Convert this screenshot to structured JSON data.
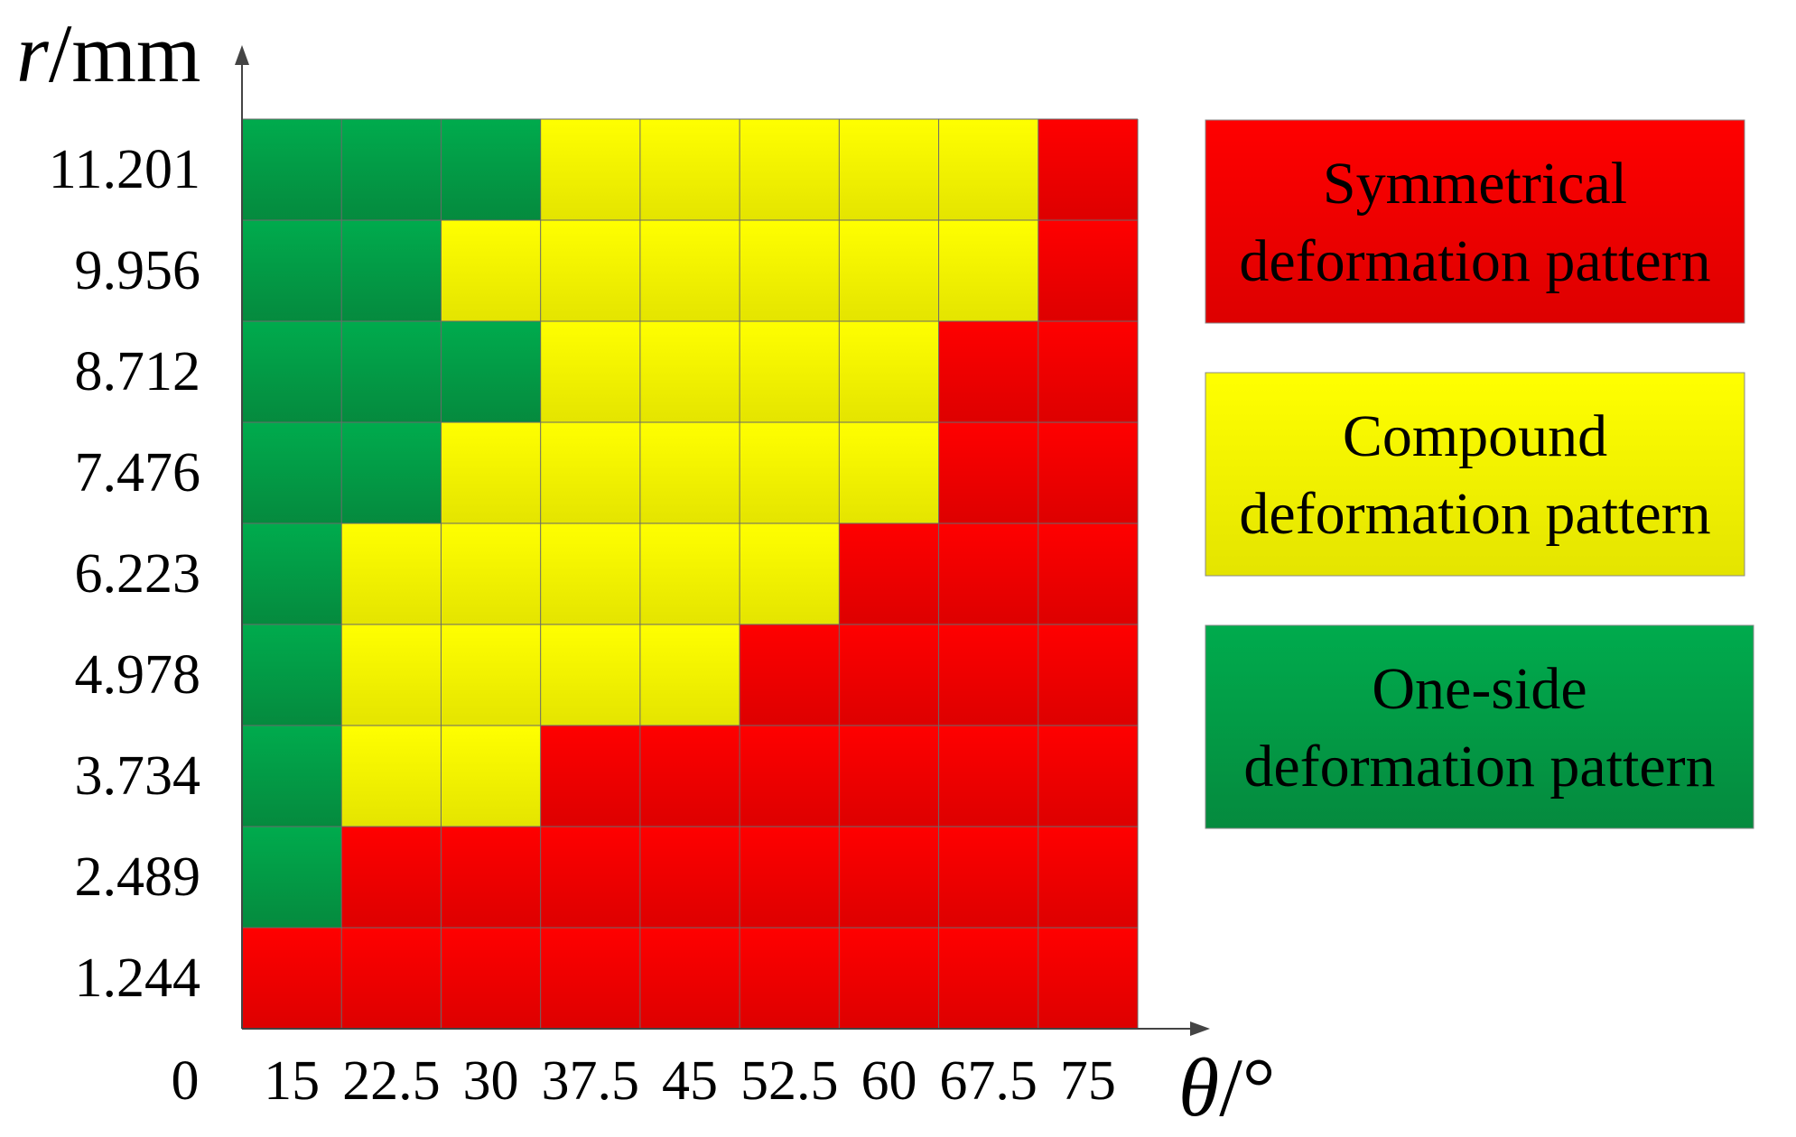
{
  "chart_data": {
    "type": "heatmap",
    "xlabel": {
      "var": "θ",
      "unit": "/°"
    },
    "ylabel": {
      "var": "r",
      "unit": "/mm"
    },
    "origin_label": "0",
    "x": [
      "15",
      "22.5",
      "30",
      "37.5",
      "45",
      "52.5",
      "60",
      "67.5",
      "75"
    ],
    "y": [
      "1.244",
      "2.489",
      "3.734",
      "4.978",
      "6.223",
      "7.476",
      "8.712",
      "9.956",
      "11.201"
    ],
    "classes": [
      {
        "key": "S",
        "label": [
          "Symmetrical",
          "deformation pattern"
        ],
        "color_top": "#ff0000",
        "color_bottom": "#dd0000"
      },
      {
        "key": "C",
        "label": [
          "Compound",
          "deformation pattern"
        ],
        "color_top": "#ffff00",
        "color_bottom": "#e4e400"
      },
      {
        "key": "O",
        "label": [
          "One-side",
          "deformation pattern"
        ],
        "color_top": "#00ab4d",
        "color_bottom": "#058a3e"
      }
    ],
    "grid": [
      [
        "S",
        "S",
        "S",
        "S",
        "S",
        "S",
        "S",
        "S",
        "S"
      ],
      [
        "O",
        "S",
        "S",
        "S",
        "S",
        "S",
        "S",
        "S",
        "S"
      ],
      [
        "O",
        "C",
        "C",
        "S",
        "S",
        "S",
        "S",
        "S",
        "S"
      ],
      [
        "O",
        "C",
        "C",
        "C",
        "C",
        "S",
        "S",
        "S",
        "S"
      ],
      [
        "O",
        "C",
        "C",
        "C",
        "C",
        "C",
        "S",
        "S",
        "S"
      ],
      [
        "O",
        "O",
        "C",
        "C",
        "C",
        "C",
        "C",
        "S",
        "S"
      ],
      [
        "O",
        "O",
        "O",
        "C",
        "C",
        "C",
        "C",
        "S",
        "S"
      ],
      [
        "O",
        "O",
        "C",
        "C",
        "C",
        "C",
        "C",
        "C",
        "S"
      ],
      [
        "O",
        "O",
        "O",
        "C",
        "C",
        "C",
        "C",
        "C",
        "S"
      ]
    ]
  }
}
